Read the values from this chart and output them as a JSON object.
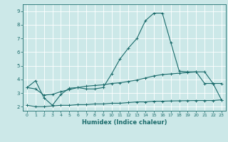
{
  "xlabel": "Humidex (Indice chaleur)",
  "background_color": "#cce8e8",
  "grid_color": "#ffffff",
  "line_color": "#1a6b6b",
  "xlim": [
    -0.5,
    23.5
  ],
  "ylim": [
    1.7,
    9.5
  ],
  "xticks": [
    0,
    1,
    2,
    3,
    4,
    5,
    6,
    7,
    8,
    9,
    10,
    11,
    12,
    13,
    14,
    15,
    16,
    17,
    18,
    19,
    20,
    21,
    22,
    23
  ],
  "yticks": [
    2,
    3,
    4,
    5,
    6,
    7,
    8,
    9
  ],
  "line1_x": [
    0,
    1,
    2,
    3,
    4,
    5,
    6,
    7,
    8,
    9,
    10,
    11,
    12,
    13,
    14,
    15,
    16,
    17,
    18,
    19,
    20,
    21,
    22,
    23
  ],
  "line1_y": [
    3.4,
    3.9,
    2.65,
    2.1,
    2.9,
    3.35,
    3.4,
    3.3,
    3.3,
    3.4,
    4.4,
    5.5,
    6.3,
    7.0,
    8.3,
    8.85,
    8.85,
    6.7,
    4.6,
    4.55,
    4.55,
    3.7,
    3.7,
    2.5
  ],
  "line2_x": [
    0,
    1,
    2,
    3,
    4,
    5,
    6,
    7,
    8,
    9,
    10,
    11,
    12,
    13,
    14,
    15,
    16,
    17,
    18,
    19,
    20,
    21,
    22,
    23
  ],
  "line2_y": [
    3.4,
    3.3,
    2.85,
    2.9,
    3.1,
    3.25,
    3.4,
    3.5,
    3.55,
    3.6,
    3.7,
    3.75,
    3.85,
    3.95,
    4.1,
    4.25,
    4.35,
    4.4,
    4.45,
    4.5,
    4.55,
    4.55,
    3.7,
    3.7
  ],
  "line3_x": [
    0,
    1,
    2,
    3,
    4,
    5,
    6,
    7,
    8,
    9,
    10,
    11,
    12,
    13,
    14,
    15,
    16,
    17,
    18,
    19,
    20,
    21,
    22,
    23
  ],
  "line3_y": [
    2.1,
    2.0,
    2.0,
    2.05,
    2.1,
    2.1,
    2.15,
    2.15,
    2.2,
    2.2,
    2.25,
    2.25,
    2.3,
    2.35,
    2.35,
    2.4,
    2.4,
    2.42,
    2.43,
    2.44,
    2.45,
    2.45,
    2.45,
    2.5
  ]
}
